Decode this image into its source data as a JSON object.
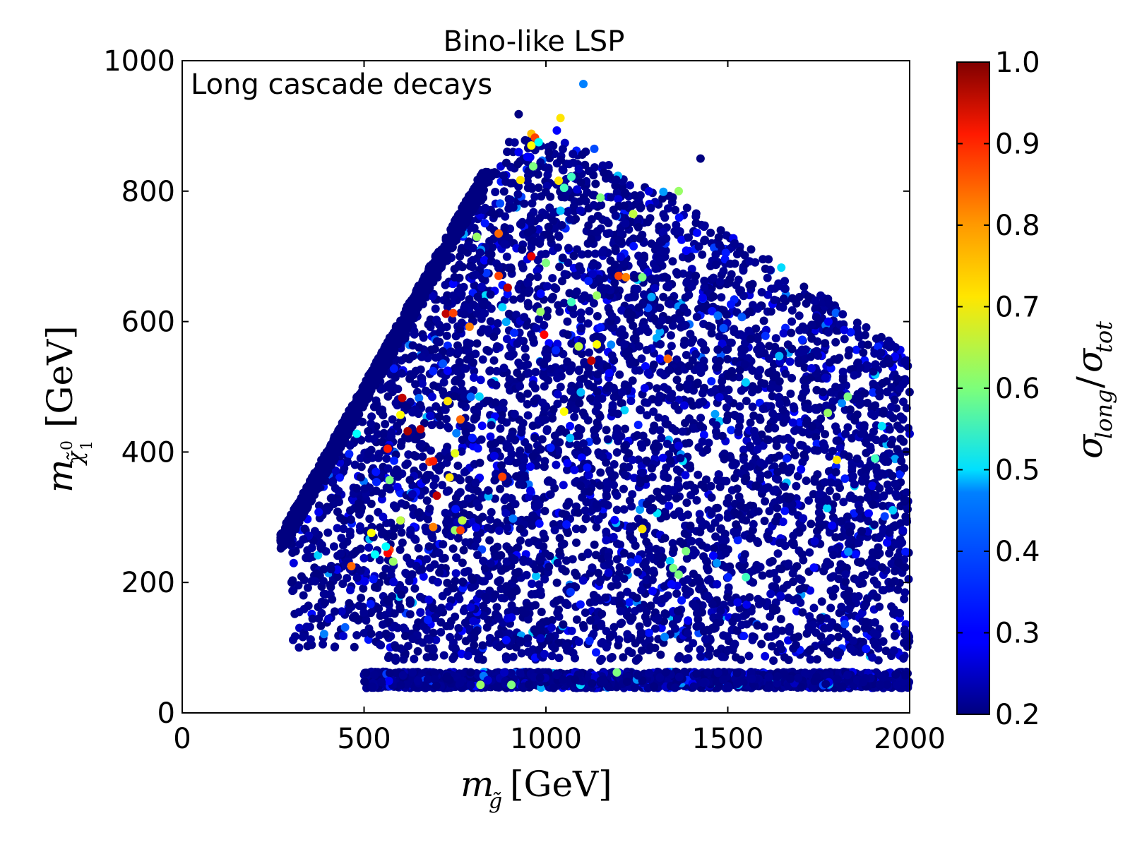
{
  "chart_data": {
    "type": "scatter",
    "title": "Bino-like LSP",
    "xlabel": {
      "symbol": "m",
      "subscript": "g̃",
      "unit": "[GeV]"
    },
    "ylabel": {
      "symbol": "m",
      "subscript": "χ̃",
      "sub_super": "0",
      "sub_sub": "1",
      "unit": "[GeV]"
    },
    "xlim": [
      0,
      2000
    ],
    "ylim": [
      0,
      1000
    ],
    "x_ticks": [
      {
        "value": 0,
        "label": "0"
      },
      {
        "value": 500,
        "label": "500"
      },
      {
        "value": 1000,
        "label": "1000"
      },
      {
        "value": 1500,
        "label": "1500"
      },
      {
        "value": 2000,
        "label": "2000"
      }
    ],
    "y_ticks": [
      {
        "value": 0,
        "label": "0"
      },
      {
        "value": 200,
        "label": "200"
      },
      {
        "value": 400,
        "label": "400"
      },
      {
        "value": 600,
        "label": "600"
      },
      {
        "value": 800,
        "label": "800"
      },
      {
        "value": 1000,
        "label": "1000"
      }
    ],
    "legend": {
      "label": "Long cascade decays",
      "position": "top-left",
      "marker_color": "#0080ff"
    },
    "colorbar": {
      "label": {
        "numerator": "σ",
        "numerator_sub": "long",
        "denominator": "σ",
        "denominator_sub": "tot"
      },
      "range": [
        0.2,
        1.0
      ],
      "colormap": "jet",
      "ticks": [
        {
          "value": 0.2,
          "label": "0.2"
        },
        {
          "value": 0.3,
          "label": "0.3"
        },
        {
          "value": 0.4,
          "label": "0.4"
        },
        {
          "value": 0.5,
          "label": "0.5"
        },
        {
          "value": 0.6,
          "label": "0.6"
        },
        {
          "value": 0.7,
          "label": "0.7"
        },
        {
          "value": 0.8,
          "label": "0.8"
        },
        {
          "value": 0.9,
          "label": "0.9"
        },
        {
          "value": 1.0,
          "label": "1.0"
        }
      ]
    },
    "points": [
      {
        "x": 925,
        "y": 918,
        "c": 0.2
      },
      {
        "x": 1030,
        "y": 893,
        "c": 0.3
      },
      {
        "x": 1040,
        "y": 912,
        "c": 0.72
      },
      {
        "x": 960,
        "y": 888,
        "c": 0.75
      },
      {
        "x": 970,
        "y": 882,
        "c": 0.85
      },
      {
        "x": 960,
        "y": 870,
        "c": 0.7
      },
      {
        "x": 980,
        "y": 875,
        "c": 0.5
      },
      {
        "x": 1100,
        "y": 856,
        "c": 0.2
      },
      {
        "x": 1425,
        "y": 850,
        "c": 0.2
      },
      {
        "x": 930,
        "y": 817,
        "c": 0.72
      },
      {
        "x": 965,
        "y": 838,
        "c": 0.6
      },
      {
        "x": 1035,
        "y": 816,
        "c": 0.72
      },
      {
        "x": 1070,
        "y": 822,
        "c": 0.55
      },
      {
        "x": 1050,
        "y": 805,
        "c": 0.55
      },
      {
        "x": 1040,
        "y": 770,
        "c": 0.45
      },
      {
        "x": 1150,
        "y": 790,
        "c": 0.6
      },
      {
        "x": 1240,
        "y": 765,
        "c": 0.65
      },
      {
        "x": 1365,
        "y": 800,
        "c": 0.62
      },
      {
        "x": 870,
        "y": 735,
        "c": 0.82
      },
      {
        "x": 810,
        "y": 730,
        "c": 0.62
      },
      {
        "x": 960,
        "y": 700,
        "c": 0.92
      },
      {
        "x": 1000,
        "y": 690,
        "c": 0.6
      },
      {
        "x": 870,
        "y": 670,
        "c": 0.85
      },
      {
        "x": 1200,
        "y": 670,
        "c": 0.85
      },
      {
        "x": 1220,
        "y": 668,
        "c": 0.8
      },
      {
        "x": 1265,
        "y": 668,
        "c": 0.6
      },
      {
        "x": 895,
        "y": 652,
        "c": 0.95
      },
      {
        "x": 1070,
        "y": 630,
        "c": 0.55
      },
      {
        "x": 1140,
        "y": 640,
        "c": 0.62
      },
      {
        "x": 725,
        "y": 612,
        "c": 0.95
      },
      {
        "x": 745,
        "y": 613,
        "c": 0.85
      },
      {
        "x": 985,
        "y": 615,
        "c": 0.62
      },
      {
        "x": 790,
        "y": 592,
        "c": 0.8
      },
      {
        "x": 995,
        "y": 580,
        "c": 0.9
      },
      {
        "x": 1140,
        "y": 565,
        "c": 0.7
      },
      {
        "x": 1090,
        "y": 562,
        "c": 0.65
      },
      {
        "x": 1125,
        "y": 540,
        "c": 0.95
      },
      {
        "x": 1335,
        "y": 543,
        "c": 0.82
      },
      {
        "x": 605,
        "y": 483,
        "c": 0.95
      },
      {
        "x": 730,
        "y": 478,
        "c": 0.72
      },
      {
        "x": 1050,
        "y": 462,
        "c": 0.7
      },
      {
        "x": 600,
        "y": 457,
        "c": 0.7
      },
      {
        "x": 765,
        "y": 450,
        "c": 0.82
      },
      {
        "x": 620,
        "y": 432,
        "c": 0.97
      },
      {
        "x": 655,
        "y": 435,
        "c": 0.95
      },
      {
        "x": 1830,
        "y": 485,
        "c": 0.6
      },
      {
        "x": 1775,
        "y": 460,
        "c": 0.62
      },
      {
        "x": 565,
        "y": 405,
        "c": 0.88
      },
      {
        "x": 750,
        "y": 398,
        "c": 0.68
      },
      {
        "x": 680,
        "y": 385,
        "c": 0.85
      },
      {
        "x": 690,
        "y": 386,
        "c": 0.88
      },
      {
        "x": 1800,
        "y": 388,
        "c": 0.72
      },
      {
        "x": 1905,
        "y": 390,
        "c": 0.55
      },
      {
        "x": 880,
        "y": 362,
        "c": 0.85
      },
      {
        "x": 735,
        "y": 361,
        "c": 0.72
      },
      {
        "x": 570,
        "y": 357,
        "c": 0.6
      },
      {
        "x": 700,
        "y": 333,
        "c": 0.95
      },
      {
        "x": 600,
        "y": 295,
        "c": 0.65
      },
      {
        "x": 690,
        "y": 285,
        "c": 0.8
      },
      {
        "x": 770,
        "y": 295,
        "c": 0.65
      },
      {
        "x": 750,
        "y": 280,
        "c": 0.62
      },
      {
        "x": 765,
        "y": 280,
        "c": 0.85
      },
      {
        "x": 1265,
        "y": 282,
        "c": 0.72
      },
      {
        "x": 520,
        "y": 276,
        "c": 0.7
      },
      {
        "x": 570,
        "y": 250,
        "c": 0.85
      },
      {
        "x": 565,
        "y": 245,
        "c": 0.9
      },
      {
        "x": 580,
        "y": 232,
        "c": 0.62
      },
      {
        "x": 465,
        "y": 225,
        "c": 0.82
      },
      {
        "x": 1385,
        "y": 248,
        "c": 0.6
      },
      {
        "x": 1350,
        "y": 222,
        "c": 0.6
      },
      {
        "x": 1365,
        "y": 212,
        "c": 0.6
      },
      {
        "x": 1550,
        "y": 208,
        "c": 0.55
      },
      {
        "x": 480,
        "y": 428,
        "c": 0.5
      },
      {
        "x": 530,
        "y": 243,
        "c": 0.5
      },
      {
        "x": 1195,
        "y": 62,
        "c": 0.6
      },
      {
        "x": 905,
        "y": 43,
        "c": 0.6
      },
      {
        "x": 820,
        "y": 43,
        "c": 0.62
      },
      {
        "x": 560,
        "y": 255,
        "c": 0.5
      }
    ]
  }
}
